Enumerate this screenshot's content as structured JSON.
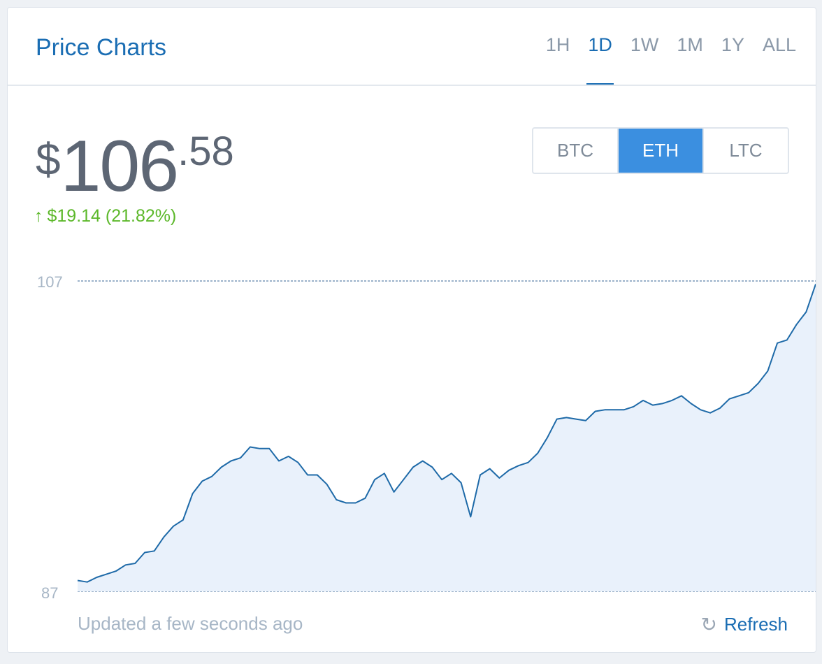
{
  "header": {
    "title": "Price Charts",
    "ranges": [
      "1H",
      "1D",
      "1W",
      "1M",
      "1Y",
      "ALL"
    ],
    "active_range": "1D"
  },
  "price": {
    "currency_symbol": "$",
    "whole": "106",
    "cents": ".58"
  },
  "change": {
    "arrow": "↑",
    "text": "$19.14 (21.82%)",
    "color": "#5cb82a"
  },
  "coins": {
    "options": [
      "BTC",
      "ETH",
      "LTC"
    ],
    "active": "ETH",
    "active_color": "#3b8fe0"
  },
  "footer": {
    "updated": "Updated a few seconds ago",
    "refresh_label": "Refresh",
    "refresh_icon": "refresh-icon"
  },
  "chart_data": {
    "type": "area",
    "ylim": [
      87,
      107
    ],
    "y_ticks": [
      "107",
      "87"
    ],
    "line_color": "#1e6aa8",
    "fill_color": "#e9f1fb",
    "grid": false,
    "values": [
      87.7,
      87.6,
      87.9,
      88.1,
      88.3,
      88.7,
      88.8,
      89.5,
      89.6,
      90.5,
      91.2,
      91.6,
      93.3,
      94.1,
      94.4,
      95.0,
      95.4,
      95.6,
      96.3,
      96.2,
      96.2,
      95.4,
      95.7,
      95.3,
      94.5,
      94.5,
      93.9,
      92.9,
      92.7,
      92.7,
      93.0,
      94.2,
      94.6,
      93.4,
      94.2,
      95.0,
      95.4,
      95.0,
      94.2,
      94.6,
      94.0,
      91.8,
      94.5,
      94.9,
      94.3,
      94.8,
      95.1,
      95.3,
      95.9,
      96.9,
      98.1,
      98.2,
      98.1,
      98.0,
      98.6,
      98.7,
      98.7,
      98.7,
      98.9,
      99.3,
      99.0,
      99.1,
      99.3,
      99.6,
      99.1,
      98.7,
      98.5,
      98.8,
      99.4,
      99.6,
      99.8,
      100.4,
      101.2,
      103.0,
      103.2,
      104.2,
      105.0,
      106.8
    ]
  }
}
